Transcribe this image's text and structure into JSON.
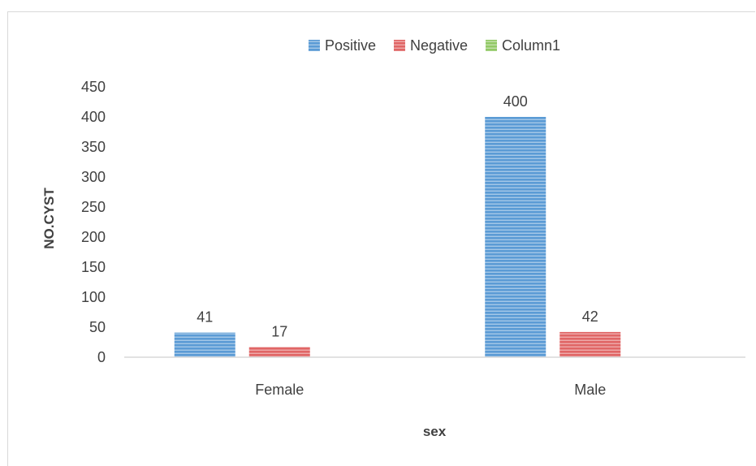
{
  "chart_data": {
    "type": "bar",
    "categories": [
      "Female",
      "Male"
    ],
    "series": [
      {
        "name": "Positive",
        "values": [
          41,
          400
        ],
        "color": "#5b9bd5"
      },
      {
        "name": "Negative",
        "values": [
          17,
          42
        ],
        "color": "#e06666"
      },
      {
        "name": "Column1",
        "values": [
          null,
          null
        ],
        "color": "#92c966"
      }
    ],
    "xlabel": "sex",
    "ylabel": "NO.CYST",
    "ylim": [
      0,
      450
    ],
    "yticks": [
      0,
      50,
      100,
      150,
      200,
      250,
      300,
      350,
      400,
      450
    ],
    "grid": false,
    "legend_position": "top",
    "data_labels": true
  }
}
